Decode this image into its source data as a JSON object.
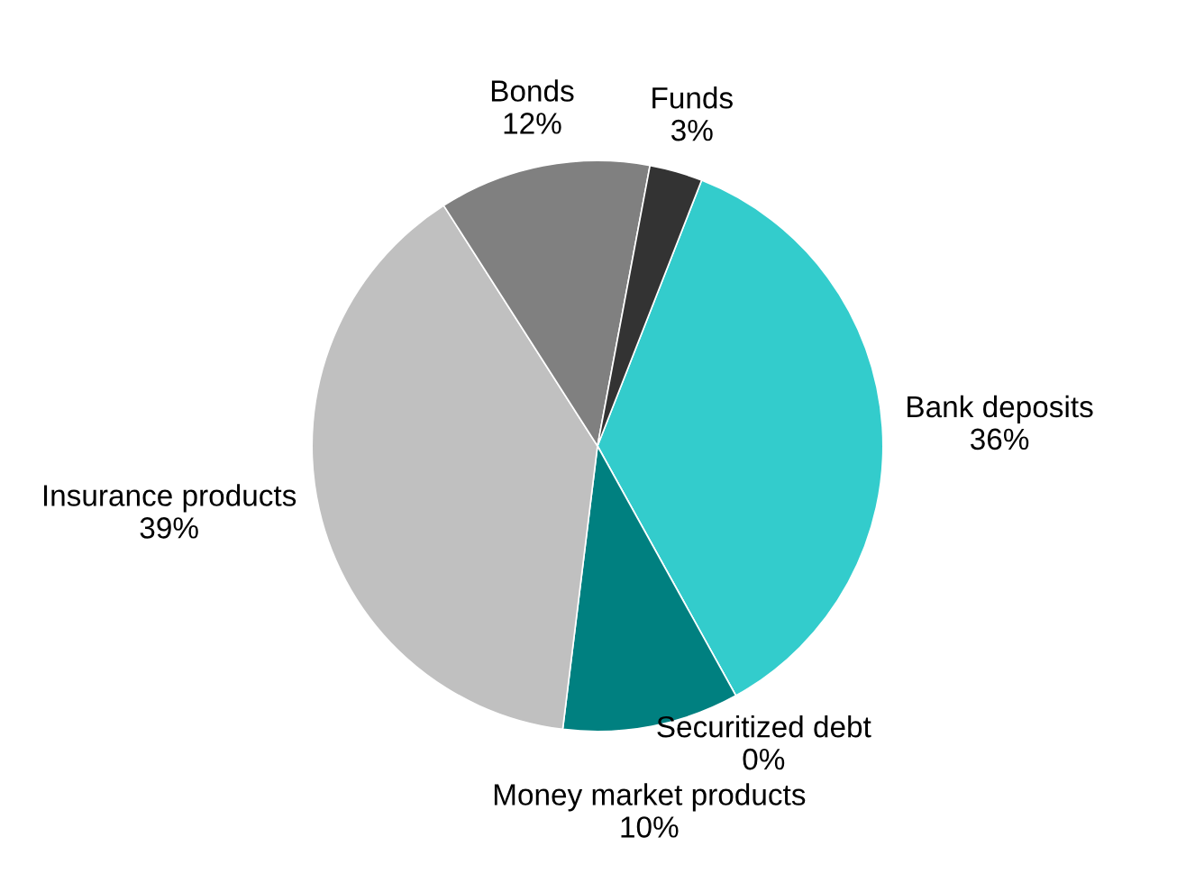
{
  "chart_data": {
    "type": "pie",
    "categories": [
      "Bank deposits",
      "Securitized debt",
      "Money market products",
      "Insurance products",
      "Bonds",
      "Funds"
    ],
    "values": [
      36,
      0,
      10,
      39,
      12,
      3
    ],
    "value_labels": [
      "36%",
      "0%",
      "10%",
      "39%",
      "12%",
      "3%"
    ],
    "colors": [
      "#33cccc",
      "#006666",
      "#008080",
      "#c0c0c0",
      "#808080",
      "#333333"
    ]
  }
}
